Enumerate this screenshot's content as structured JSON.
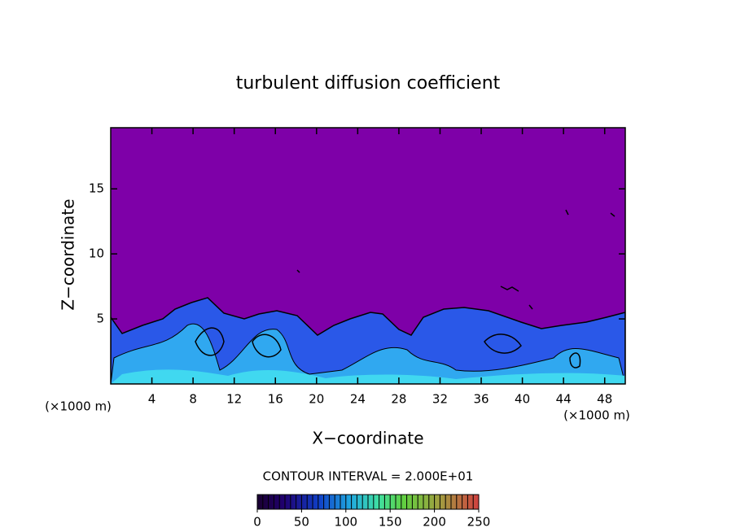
{
  "chart_data": {
    "type": "contour",
    "title": "turbulent diffusion coefficient",
    "x_label": "X−coordinate",
    "y_label": "Z−coordinate",
    "x_unit_labels": [
      "(×1000 m)",
      "(×1000 m)"
    ],
    "xlim": [
      0,
      50
    ],
    "xticks": [
      4,
      8,
      12,
      16,
      20,
      24,
      28,
      32,
      36,
      40,
      44,
      48
    ],
    "ylim": [
      0,
      19.7
    ],
    "yticks": [
      5,
      10,
      15
    ],
    "contour_interval_label": "CONTOUR INTERVAL = 2.000E+01",
    "colorbar_lim": [
      0,
      250
    ],
    "colorbar_ticks": [
      0,
      50,
      100,
      150,
      200,
      250
    ]
  }
}
